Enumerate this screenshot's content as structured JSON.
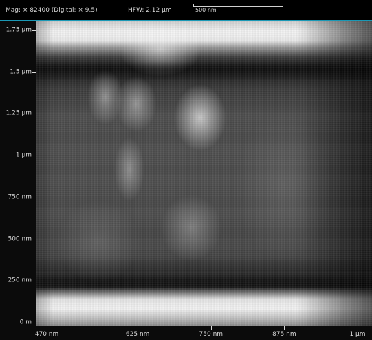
{
  "header": {
    "mag": "Mag: × 82400 (Digital: × 9.5)",
    "hfw": "HFW: 2.12 µm",
    "scale_bar_label": "500 nm"
  },
  "accent_color": "#1a98b5",
  "y_axis": {
    "ticks": [
      {
        "label": "0 m",
        "value_nm": 0
      },
      {
        "label": "250 nm",
        "value_nm": 250
      },
      {
        "label": "500 nm",
        "value_nm": 500
      },
      {
        "label": "750 nm",
        "value_nm": 750
      },
      {
        "label": "1 µm",
        "value_nm": 1000
      },
      {
        "label": "1.25 µm",
        "value_nm": 1250
      },
      {
        "label": "1.5 µm",
        "value_nm": 1500
      },
      {
        "label": "1.75 µm",
        "value_nm": 1750
      }
    ]
  },
  "x_axis": {
    "ticks": [
      {
        "label": "470 nm",
        "value_nm": 470
      },
      {
        "label": "625 nm",
        "value_nm": 625
      },
      {
        "label": "750 nm",
        "value_nm": 750
      },
      {
        "label": "875 nm",
        "value_nm": 875
      },
      {
        "label": "1 µm",
        "value_nm": 1000
      }
    ]
  }
}
